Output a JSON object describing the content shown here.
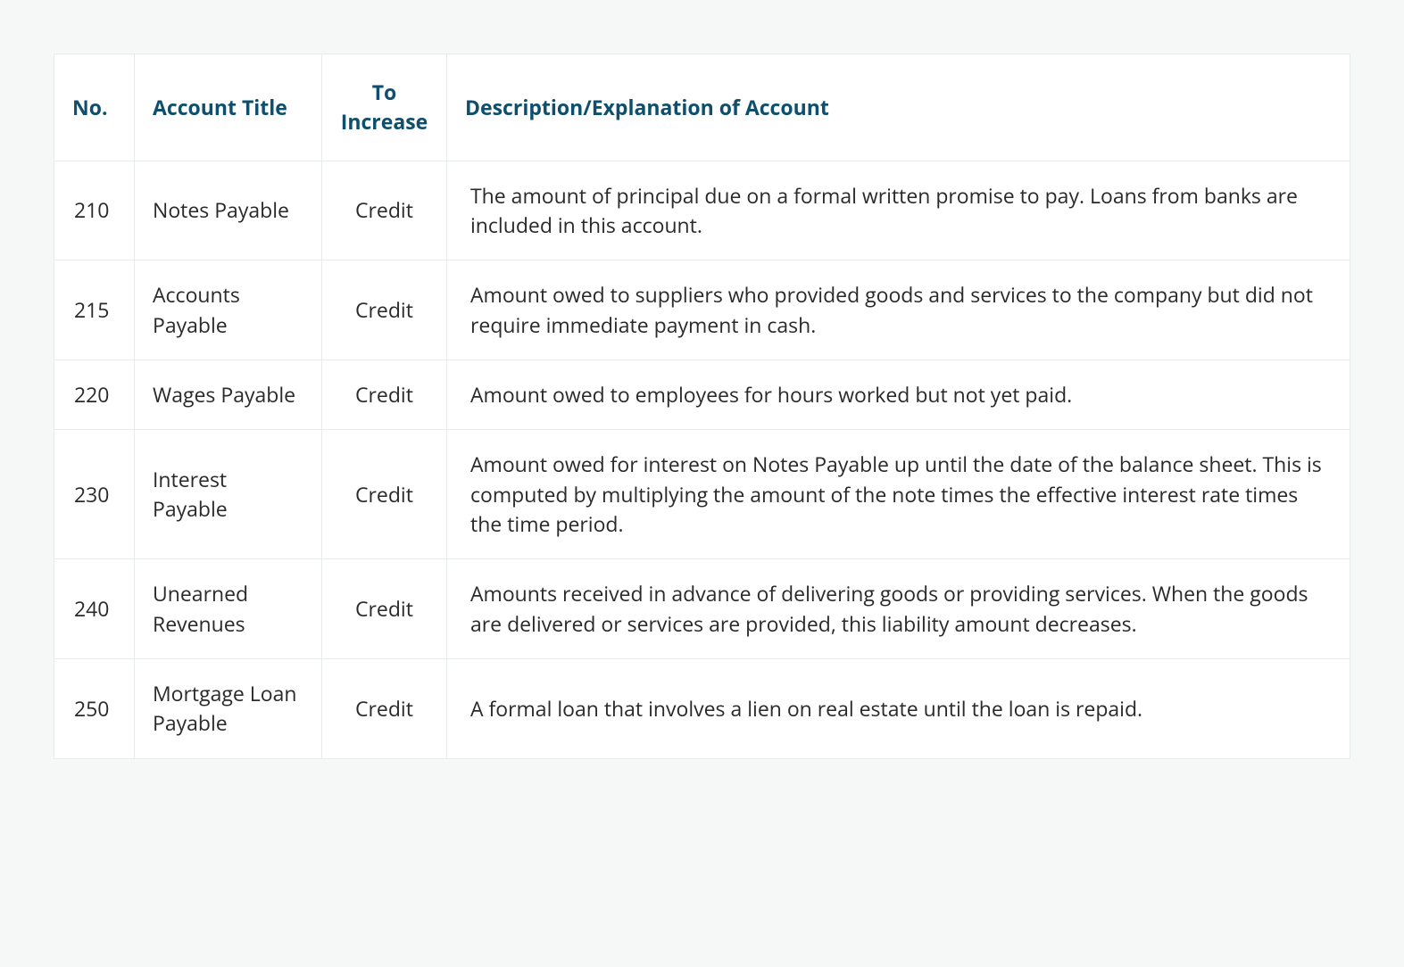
{
  "table": {
    "columns": [
      {
        "key": "no",
        "label": "No."
      },
      {
        "key": "title",
        "label": "Account Title"
      },
      {
        "key": "increase",
        "label": "To Increase"
      },
      {
        "key": "desc",
        "label": "Description/Explanation of Account"
      }
    ],
    "rows": [
      {
        "no": "210",
        "title": "Notes Payable",
        "increase": "Credit",
        "desc": "The amount of principal due on a formal written promise to pay. Loans from banks are included in this account."
      },
      {
        "no": "215",
        "title": "Accounts Payable",
        "increase": "Credit",
        "desc": "Amount owed to suppliers who provided goods and services to the company but did not require immediate payment in cash."
      },
      {
        "no": "220",
        "title": "Wages Payable",
        "increase": "Credit",
        "desc": "Amount owed to employees for hours worked but not yet paid."
      },
      {
        "no": "230",
        "title": "Interest Payable",
        "increase": "Credit",
        "desc": "Amount owed for interest on Notes Payable up until the date of the balance sheet. This is computed by multiplying the amount of the note times the effective interest rate times the time period."
      },
      {
        "no": "240",
        "title": "Unearned Revenues",
        "increase": "Credit",
        "desc": "Amounts received in advance of delivering goods or providing services. When the goods are delivered or services are provided, this liability amount decreases."
      },
      {
        "no": "250",
        "title": "Mortgage Loan Payable",
        "increase": "Credit",
        "desc": "A formal loan that involves a lien on real estate until the loan is repaid."
      }
    ],
    "header_color": "#0d4f6c",
    "border_color": "#e8ebec",
    "background_color": "#f6f8f8",
    "cell_background": "#ffffff",
    "text_color": "#2a2a2a",
    "header_fontsize": 23,
    "cell_fontsize": 23
  }
}
